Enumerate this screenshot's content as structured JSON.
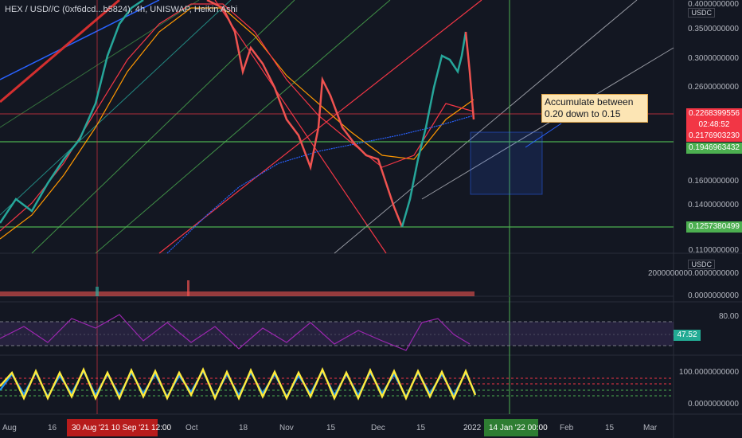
{
  "header": {
    "title": "HEX / USD//C (0xf6dcd...b5824), 4h, UNISWAP, Heikin Ashi"
  },
  "main_pane": {
    "currency": "USDC",
    "price_ticks": [
      "0.4000000000",
      "0.3500000000",
      "0.3000000000",
      "0.2600000000",
      "0.1600000000",
      "0.1400000000",
      "0.1100000000"
    ],
    "last_price": "0.2268399556",
    "countdown": "02:48:52",
    "level_red": "0.2176903230",
    "level_green_upper": "0.1946963432",
    "level_green_lower": "0.1257380499"
  },
  "annotation": {
    "text": "Accumulate between 0.20 down to 0.15"
  },
  "volume_pane": {
    "currency": "USDC",
    "ticks": [
      "2000000000.0000000000",
      "0.0000000000"
    ]
  },
  "rsi_pane": {
    "ticks": [
      "80.00",
      "47.52"
    ]
  },
  "osc_pane": {
    "ticks": [
      "100.0000000000",
      "0.0000000000"
    ]
  },
  "time_axis": {
    "ticks": [
      "Aug",
      "16",
      "Oct",
      "18",
      "Nov",
      "15",
      "Dec",
      "15",
      "2022",
      "Feb",
      "15",
      "Mar"
    ],
    "badge_red": "30 Aug '21   10 Sep '21   12:00",
    "badge_green": "14 Jan '22   00:00"
  },
  "colors": {
    "background": "#131722",
    "red_level": "#f23645",
    "green_level": "#22ab94",
    "green_line": "#4caf50",
    "ma_orange": "#ff9800",
    "ma_blue": "#2962ff"
  }
}
